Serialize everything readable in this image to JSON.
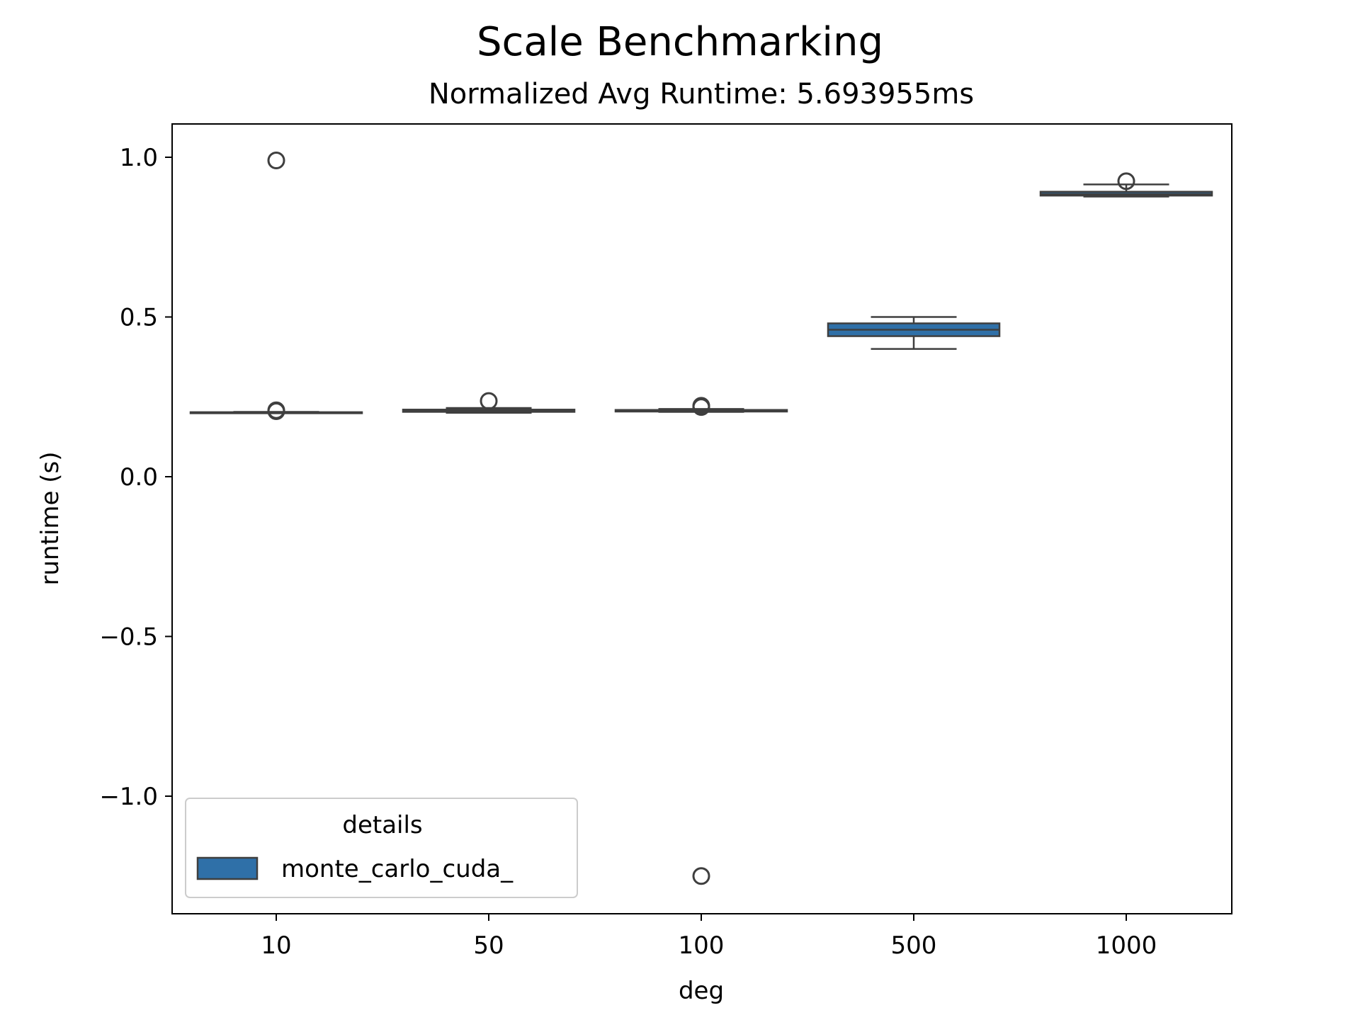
{
  "chart_data": {
    "type": "box",
    "title": "Scale Benchmarking",
    "subtitle": "Normalized Avg Runtime: 5.693955ms",
    "xlabel": "deg",
    "ylabel": "runtime (s)",
    "categories": [
      "10",
      "50",
      "100",
      "500",
      "1000"
    ],
    "ylim": [
      -1.3,
      1.1
    ],
    "yticks": [
      1.0,
      0.5,
      0.0,
      -0.5,
      -1.0
    ],
    "ytick_labels": [
      "1.0",
      "0.5",
      "0.0",
      "−0.5",
      "−1.0"
    ],
    "grid": false,
    "legend": {
      "title": "details",
      "placement": "lower-left",
      "entries": [
        "monte_carlo_cuda_"
      ]
    },
    "box_color": "#2f70a8",
    "line_color": "#3f3f3f",
    "series": [
      {
        "name": "monte_carlo_cuda_",
        "boxes": [
          {
            "category": "10",
            "whislo": 0.199,
            "q1": 0.2,
            "med": 0.201,
            "q3": 0.202,
            "whishi": 0.203,
            "fliers": [
              0.99,
              0.205,
              0.208
            ]
          },
          {
            "category": "50",
            "whislo": 0.2,
            "q1": 0.203,
            "med": 0.206,
            "q3": 0.21,
            "whishi": 0.215,
            "fliers": [
              0.237
            ]
          },
          {
            "category": "100",
            "whislo": 0.203,
            "q1": 0.204,
            "med": 0.206,
            "q3": 0.209,
            "whishi": 0.212,
            "fliers": [
              0.218,
              0.222,
              -1.25
            ]
          },
          {
            "category": "500",
            "whislo": 0.4,
            "q1": 0.44,
            "med": 0.46,
            "q3": 0.48,
            "whishi": 0.5,
            "fliers": []
          },
          {
            "category": "1000",
            "whislo": 0.877,
            "q1": 0.88,
            "med": 0.885,
            "q3": 0.892,
            "whishi": 0.915,
            "fliers": [
              0.925
            ]
          }
        ]
      }
    ]
  }
}
